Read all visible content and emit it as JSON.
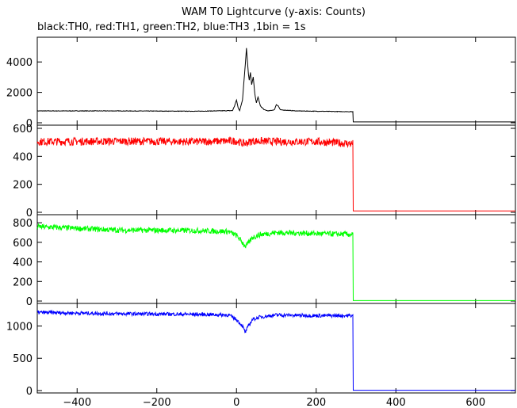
{
  "chart_data": {
    "type": "line",
    "title": "WAM T0 Lightcurve (y-axis: Counts)",
    "subtitle": "black:TH0, red:TH1, green:TH2, blue:TH3 ,1bin = 1s",
    "xlim": [
      -500,
      700
    ],
    "x_ticks": [
      -400,
      -200,
      0,
      200,
      400,
      600
    ],
    "x_tick_labels": [
      "−400",
      "−200",
      "0",
      "200",
      "400",
      "600"
    ],
    "grid": false,
    "panels": [
      {
        "name": "TH0",
        "color": "#000000",
        "ylim": [
          0,
          5000
        ],
        "y_ticks": [
          0,
          2000,
          4000
        ],
        "points": [
          [
            -500,
            780
          ],
          [
            -300,
            780
          ],
          [
            -100,
            760
          ],
          [
            -10,
            800
          ],
          [
            -5,
            1100
          ],
          [
            0,
            1500
          ],
          [
            4,
            1000
          ],
          [
            8,
            800
          ],
          [
            15,
            1500
          ],
          [
            18,
            2500
          ],
          [
            22,
            3800
          ],
          [
            25,
            4900
          ],
          [
            27,
            4200
          ],
          [
            30,
            3200
          ],
          [
            32,
            2800
          ],
          [
            35,
            3300
          ],
          [
            38,
            2500
          ],
          [
            42,
            3000
          ],
          [
            46,
            1900
          ],
          [
            50,
            1300
          ],
          [
            54,
            1700
          ],
          [
            60,
            1100
          ],
          [
            70,
            850
          ],
          [
            80,
            780
          ],
          [
            95,
            850
          ],
          [
            100,
            1200
          ],
          [
            105,
            1100
          ],
          [
            110,
            850
          ],
          [
            150,
            780
          ],
          [
            200,
            760
          ],
          [
            250,
            740
          ],
          [
            292,
            730
          ],
          [
            293,
            60
          ],
          [
            700,
            60
          ]
        ]
      },
      {
        "name": "TH1",
        "color": "#ff0000",
        "ylim": [
          0,
          600
        ],
        "y_ticks": [
          0,
          200,
          400,
          600
        ],
        "points": [
          [
            -500,
            505
          ],
          [
            -300,
            508
          ],
          [
            -100,
            505
          ],
          [
            0,
            510
          ],
          [
            20,
            490
          ],
          [
            40,
            510
          ],
          [
            100,
            505
          ],
          [
            200,
            505
          ],
          [
            292,
            490
          ],
          [
            293,
            10
          ],
          [
            700,
            10
          ]
        ]
      },
      {
        "name": "TH2",
        "color": "#00ff00",
        "ylim": [
          0,
          850
        ],
        "y_ticks": [
          0,
          200,
          400,
          600,
          800
        ],
        "points": [
          [
            -500,
            760
          ],
          [
            -300,
            725
          ],
          [
            -100,
            720
          ],
          [
            -20,
            710
          ],
          [
            0,
            670
          ],
          [
            15,
            600
          ],
          [
            22,
            560
          ],
          [
            30,
            590
          ],
          [
            40,
            650
          ],
          [
            60,
            680
          ],
          [
            100,
            700
          ],
          [
            200,
            690
          ],
          [
            292,
            680
          ],
          [
            293,
            5
          ],
          [
            700,
            5
          ]
        ]
      },
      {
        "name": "TH3",
        "color": "#0000ff",
        "ylim": [
          0,
          1300
        ],
        "y_ticks": [
          0,
          500,
          1000
        ],
        "points": [
          [
            -500,
            1210
          ],
          [
            -300,
            1190
          ],
          [
            -100,
            1180
          ],
          [
            -20,
            1170
          ],
          [
            0,
            1100
          ],
          [
            15,
            1000
          ],
          [
            22,
            900
          ],
          [
            30,
            1000
          ],
          [
            40,
            1100
          ],
          [
            60,
            1140
          ],
          [
            100,
            1170
          ],
          [
            200,
            1160
          ],
          [
            292,
            1160
          ],
          [
            293,
            5
          ],
          [
            700,
            5
          ]
        ]
      }
    ]
  }
}
